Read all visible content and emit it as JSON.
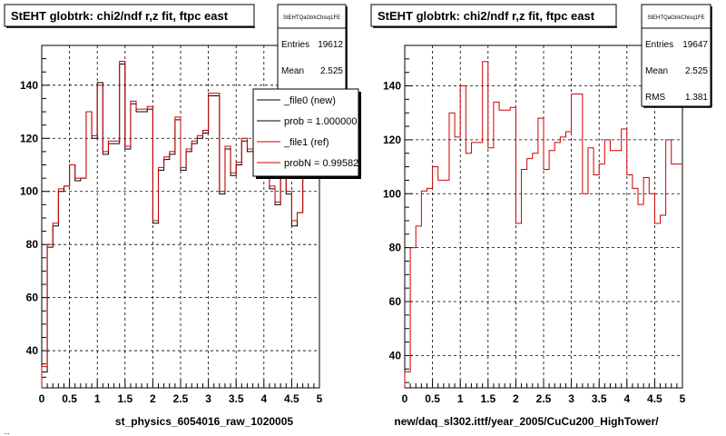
{
  "colors": {
    "new": "#000000",
    "ref": "#cc0000",
    "background": "#ffffff"
  },
  "footer_text": "...",
  "chart_data": [
    {
      "type": "histogram",
      "title": "StEHT globtrk: chi2/ndf r,z fit, ftpc east",
      "xlabel": "st_physics_6054016_raw_1020005",
      "xlim": [
        0,
        5
      ],
      "ylim": [
        26,
        155
      ],
      "x_ticks": [
        "0",
        "0.5",
        "1",
        "1.5",
        "2",
        "2.5",
        "3",
        "3.5",
        "4",
        "4.5",
        "5"
      ],
      "y_ticks": [
        40,
        60,
        80,
        100,
        120,
        140
      ],
      "grid": true,
      "bin_width": 0.1,
      "series": [
        {
          "name": "_file0 (new)",
          "values": [
            32,
            79,
            87,
            100,
            102,
            110,
            104,
            105,
            130,
            120,
            141,
            114,
            118,
            118,
            148,
            116,
            133,
            130,
            130,
            131,
            88,
            108,
            112,
            114,
            127,
            108,
            115,
            118,
            120,
            122,
            136,
            136,
            99,
            116,
            106,
            110,
            119,
            115,
            115,
            123,
            106,
            101,
            95,
            105,
            99,
            87,
            92,
            120,
            110,
            110
          ]
        },
        {
          "name": "_file1 (ref)",
          "values": [
            34,
            80,
            88,
            101,
            102,
            110,
            105,
            105,
            130,
            121,
            140,
            115,
            119,
            119,
            149,
            117,
            134,
            131,
            131,
            132,
            89,
            109,
            113,
            115,
            128,
            109,
            116,
            119,
            121,
            123,
            137,
            137,
            100,
            117,
            107,
            111,
            120,
            116,
            116,
            124,
            107,
            102,
            96,
            106,
            100,
            89,
            92,
            120,
            111,
            111
          ]
        }
      ],
      "stats_box": {
        "name": "StEHTQaGtrkChisq1FE",
        "entries_label": "Entries",
        "entries": "19612",
        "mean_label": "Mean",
        "mean": "2.525"
      },
      "legend": {
        "placement": "top-right",
        "entries": [
          "_file0 (new)",
          "prob = 1.000000",
          "_file1 (ref)",
          "probN = 0.99582"
        ]
      }
    },
    {
      "type": "histogram",
      "title": "StEHT globtrk: chi2/ndf r,z fit, ftpc east",
      "xlabel": "new/daq_sl302.ittf/year_2005/CuCu200_HighTower/",
      "xlim": [
        0,
        5
      ],
      "ylim": [
        28,
        155
      ],
      "x_ticks": [
        "0",
        "0.5",
        "1",
        "1.5",
        "2",
        "2.5",
        "3",
        "3.5",
        "4",
        "4.5",
        "5"
      ],
      "y_ticks": [
        40,
        60,
        80,
        100,
        120,
        140
      ],
      "grid": true,
      "bin_width": 0.1,
      "series": [
        {
          "name": "",
          "values": [
            34,
            80,
            88,
            101,
            102,
            110,
            105,
            105,
            130,
            121,
            140,
            115,
            119,
            119,
            149,
            117,
            134,
            131,
            131,
            132,
            89,
            109,
            113,
            115,
            128,
            109,
            116,
            119,
            121,
            123,
            137,
            137,
            100,
            117,
            107,
            111,
            120,
            116,
            116,
            124,
            107,
            102,
            96,
            106,
            100,
            89,
            92,
            120,
            111,
            111
          ]
        }
      ],
      "stats_box": {
        "name": "StEHTQaGtrkChisq1FE",
        "entries_label": "Entries",
        "entries": "19647",
        "mean_label": "Mean",
        "mean": "2.525",
        "rms_label": "RMS",
        "rms": "1.381"
      }
    }
  ]
}
